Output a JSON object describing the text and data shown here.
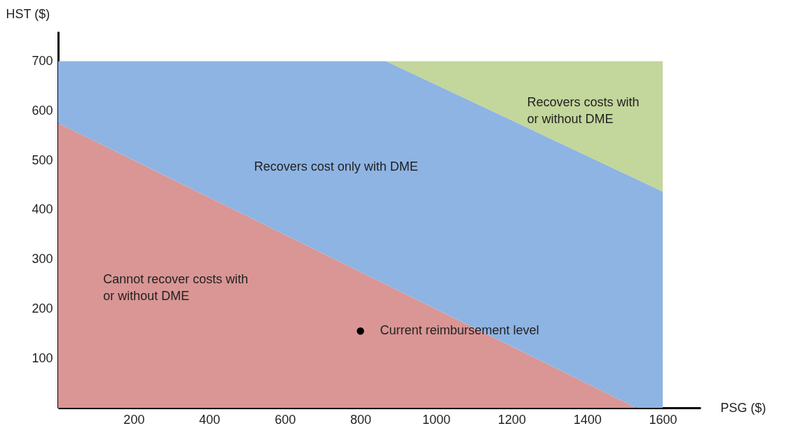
{
  "chart_data": {
    "type": "area",
    "stacked": true,
    "xlabel": "PSG ($)",
    "ylabel": "HST ($)",
    "x": [
      0,
      868,
      1530,
      1600
    ],
    "series": [
      {
        "name": "Cannot recover costs with\nor without DME",
        "color": "#d99694",
        "values": [
          575,
          249,
          0,
          0
        ]
      },
      {
        "name": "Recovers cost only with DME",
        "color": "#8eb4e3",
        "values": [
          125,
          451,
          462,
          437
        ]
      },
      {
        "name": "Recovers costs with\nor without DME",
        "color": "#c3d69b",
        "values": [
          0,
          0,
          238,
          263
        ]
      },
      {
        "type": "scatter",
        "color": "#000000",
        "x": [
          800
        ],
        "values": [
          155
        ],
        "marker": "circle"
      }
    ],
    "xlim": [
      0,
      1700
    ],
    "ylim": [
      0,
      760
    ],
    "xticks": [
      200,
      400,
      600,
      800,
      1000,
      1200,
      1400,
      1600
    ],
    "yticks": [
      100,
      200,
      300,
      400,
      500,
      600,
      700
    ],
    "grid": false,
    "annotations": [
      {
        "text": "Current reimbursement level",
        "x": 800,
        "y": 155
      }
    ]
  }
}
